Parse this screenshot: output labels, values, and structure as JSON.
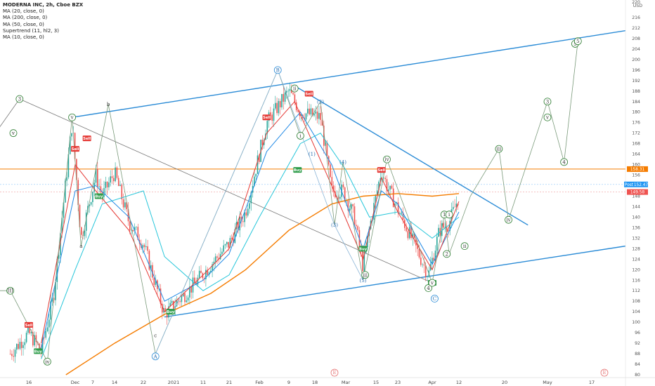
{
  "legend": {
    "title": "MODERNA INC, 2h, Cboe BZX",
    "lines": [
      "MA (20, close, 0)",
      "MA (200, close, 0)",
      "MA (50, close, 0)",
      "Supertrend (11, hl2, 3)",
      "MA (10, close, 0)"
    ]
  },
  "chart_data": {
    "type": "candlestick",
    "currency_label": "USD",
    "y_ticks": [
      80,
      84,
      88,
      92,
      96,
      100,
      104,
      108,
      112,
      116,
      120,
      124,
      128,
      132,
      136,
      140,
      144,
      148,
      152,
      156,
      160,
      164,
      168,
      172,
      176,
      180,
      184,
      188,
      192,
      196,
      200,
      204,
      208,
      212,
      216
    ],
    "y_top_label": "220",
    "ylim": [
      80,
      220
    ],
    "x_ticks": [
      "16",
      "Dec",
      "7",
      "14",
      "22",
      "2021",
      "11",
      "21",
      "Feb",
      "9",
      "18",
      "Mar",
      "15",
      "23",
      "Apr",
      "12",
      "20",
      "May",
      "17"
    ],
    "price_labels": [
      {
        "text": "158.31",
        "value": 158.31,
        "color": "#f57c00"
      },
      {
        "text": "Post",
        "value": 152.47,
        "color": "#2196f3"
      },
      {
        "text": "152.47",
        "value": 152.47,
        "color": "#2196f3"
      },
      {
        "text": "149.58",
        "value": 149.58,
        "color": "#ef5350"
      }
    ],
    "horizontal_line": 158.31,
    "signals": [
      {
        "type": "Sell",
        "date": "Dec 1",
        "price": 166
      },
      {
        "type": "Sell",
        "date": "Dec 5",
        "price": 170
      },
      {
        "type": "Buy",
        "date": "Dec 9",
        "price": 148
      },
      {
        "type": "Sell",
        "date": "Nov 16",
        "price": 99
      },
      {
        "type": "Buy",
        "date": "Nov 19",
        "price": 89
      },
      {
        "type": "Buy",
        "date": "Dec 31",
        "price": 104
      },
      {
        "type": "Sell",
        "date": "Feb 3",
        "price": 178
      },
      {
        "type": "Buy",
        "date": "Feb 12",
        "price": 158
      },
      {
        "type": "Sell",
        "date": "Feb 16",
        "price": 187
      },
      {
        "type": "Sell",
        "date": "Mar 17",
        "price": 158
      },
      {
        "type": "Buy",
        "date": "Mar 9",
        "price": 128
      },
      {
        "type": "Buy",
        "date": "Apr 1",
        "price": 115
      }
    ],
    "wave_labels": [
      {
        "text": "3",
        "date": "Nov 13",
        "price": 185,
        "circle": true
      },
      {
        "text": "v",
        "date": "Nov 11",
        "price": 172,
        "circle": true
      },
      {
        "text": "III",
        "date": "Nov 10",
        "price": 112,
        "circle": true
      },
      {
        "text": "iv",
        "date": "Nov 22",
        "price": 85,
        "circle": true
      },
      {
        "text": "v",
        "date": "Nov 30",
        "price": 178,
        "circle": true
      },
      {
        "text": "a",
        "date": "Dec 3",
        "price": 129,
        "circle": false
      },
      {
        "text": "b",
        "date": "Dec 12",
        "price": 183,
        "circle": false
      },
      {
        "text": "c",
        "date": "Dec 26",
        "price": 95,
        "circle": false
      },
      {
        "text": "A",
        "date": "Dec 26",
        "price": 87,
        "circle": true
      },
      {
        "text": "B",
        "date": "Feb 6",
        "price": 196,
        "circle": true
      },
      {
        "text": "ii",
        "date": "Feb 11",
        "price": 189,
        "circle": true
      },
      {
        "text": "(2)",
        "date": "Feb 20",
        "price": 184,
        "circle": false
      },
      {
        "text": "i",
        "date": "Feb 13",
        "price": 171,
        "circle": true
      },
      {
        "text": "(1)",
        "date": "Feb 17",
        "price": 164,
        "circle": false
      },
      {
        "text": "(4)",
        "date": "Feb 28",
        "price": 161,
        "circle": false
      },
      {
        "text": "(3)",
        "date": "Feb 25",
        "price": 137,
        "circle": false
      },
      {
        "text": "(5)",
        "date": "Mar 9",
        "price": 116,
        "circle": false
      },
      {
        "text": "iii",
        "date": "Mar 10",
        "price": 118,
        "circle": true
      },
      {
        "text": "iv",
        "date": "Mar 19",
        "price": 162,
        "circle": true
      },
      {
        "text": "4",
        "date": "Mar 31",
        "price": 113,
        "circle": true
      },
      {
        "text": "v",
        "date": "Apr 1",
        "price": 115,
        "circle": true
      },
      {
        "text": "C",
        "date": "Apr 2",
        "price": 109,
        "circle": true
      },
      {
        "text": "1",
        "date": "Apr 6",
        "price": 141,
        "circle": true
      },
      {
        "text": "i",
        "date": "Apr 8",
        "price": 141,
        "circle": true
      },
      {
        "text": "ii",
        "date": "Apr 13",
        "price": 129,
        "circle": true
      },
      {
        "text": "2",
        "date": "Apr 7",
        "price": 126,
        "circle": true
      },
      {
        "text": "iii",
        "date": "Apr 19",
        "price": 166,
        "circle": true
      },
      {
        "text": "iv",
        "date": "Apr 21",
        "price": 139,
        "circle": true
      },
      {
        "text": "3",
        "date": "May 1",
        "price": 184,
        "circle": true
      },
      {
        "text": "v",
        "date": "May 1",
        "price": 178,
        "circle": true
      },
      {
        "text": "4",
        "date": "May 7",
        "price": 161,
        "circle": true
      },
      {
        "text": "5",
        "date": "May 11",
        "price": 206,
        "circle": true
      },
      {
        "text": "5",
        "date": "May 12",
        "price": 207,
        "circle": true
      }
    ],
    "event_markers": [
      {
        "text": "E",
        "date": "Feb 25"
      },
      {
        "text": "E",
        "date": "May 20"
      }
    ]
  }
}
